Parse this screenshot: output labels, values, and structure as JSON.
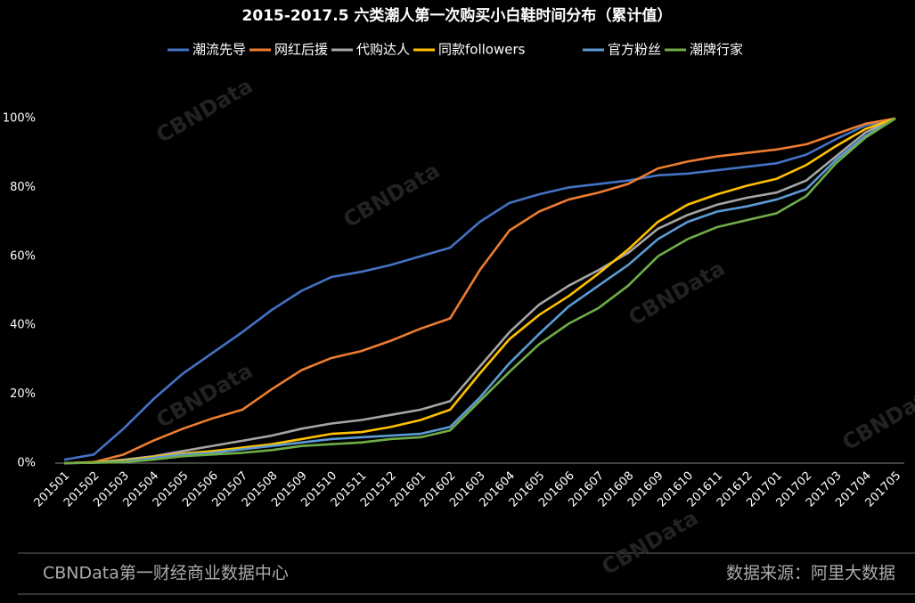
{
  "chart_data": {
    "type": "line",
    "title": "2015-2017.5 六类潮人第一次购买小白鞋时间分布（累计值）",
    "categories": [
      "201501",
      "201502",
      "201503",
      "201504",
      "201505",
      "201506",
      "201507",
      "201508",
      "201509",
      "201510",
      "201511",
      "201512",
      "201601",
      "201602",
      "201603",
      "201604",
      "201605",
      "201606",
      "201607",
      "201608",
      "201609",
      "201610",
      "201611",
      "201612",
      "201701",
      "201702",
      "201703",
      "201704",
      "201705"
    ],
    "series": [
      {
        "name": "潮流先导",
        "color": "#4472c4",
        "values": [
          1,
          2.5,
          10,
          18.5,
          26,
          32,
          38,
          44.5,
          50,
          54,
          55.5,
          57.5,
          60,
          62.5,
          70,
          75.5,
          78,
          80,
          81,
          82,
          83.5,
          84,
          85,
          86,
          87,
          89.5,
          94,
          98,
          100
        ]
      },
      {
        "name": "网红后援",
        "color": "#ed7d31",
        "values": [
          0,
          0.3,
          2.5,
          6.5,
          10,
          13,
          15.5,
          21.5,
          27,
          30.5,
          32.5,
          35.5,
          39,
          42,
          56,
          67.5,
          73,
          76.5,
          78.5,
          81,
          85.5,
          87.5,
          89,
          90,
          91,
          92.5,
          95.5,
          98.5,
          100
        ]
      },
      {
        "name": "代购达人",
        "color": "#a5a5a5",
        "values": [
          0,
          0.2,
          1,
          2,
          3.5,
          5,
          6.5,
          8,
          10,
          11.5,
          12.5,
          14,
          15.5,
          18,
          28,
          38,
          46,
          51.5,
          56,
          61,
          68,
          72,
          75,
          77,
          78.5,
          82,
          89,
          96,
          100
        ]
      },
      {
        "name": "同款followers",
        "color": "#ffc000",
        "values": [
          0,
          0.2,
          0.8,
          1.8,
          2.8,
          3.5,
          4.5,
          5.5,
          7,
          8.5,
          9,
          10.5,
          12.5,
          15.5,
          26,
          36,
          43,
          48.5,
          55,
          62,
          70,
          75,
          78,
          80.5,
          82.5,
          86.5,
          92,
          97,
          100
        ]
      },
      {
        "name": "官方粉丝",
        "color": "#5b9bd5",
        "values": [
          0,
          0.1,
          0.5,
          1.5,
          2.5,
          3,
          4,
          5,
          6,
          7,
          7.5,
          8,
          8.5,
          10.5,
          19,
          29,
          37.5,
          45.5,
          51.5,
          57.5,
          65,
          70,
          73,
          74.5,
          76.5,
          79.5,
          88,
          95,
          100
        ]
      },
      {
        "name": "潮牌行家",
        "color": "#70ad47",
        "values": [
          0,
          0.1,
          0.3,
          1,
          2,
          2.5,
          3,
          3.8,
          5,
          5.5,
          6,
          7,
          7.5,
          9.5,
          18,
          26.5,
          34.5,
          40.5,
          45,
          51.5,
          60,
          65,
          68.5,
          70.5,
          72.5,
          77.5,
          87,
          94.5,
          100
        ]
      }
    ],
    "ylim": [
      0,
      100
    ],
    "yticks": [
      {
        "value": 0,
        "label": "0%"
      },
      {
        "value": 20,
        "label": "20%"
      },
      {
        "value": 40,
        "label": "40%"
      },
      {
        "value": 60,
        "label": "60%"
      },
      {
        "value": 80,
        "label": "80%"
      },
      {
        "value": 100,
        "label": "100%"
      }
    ],
    "grid": false,
    "legend": "top",
    "watermark": "CBNData",
    "footer_left": "CBNData第一财经商业数据中心",
    "footer_right": "数据来源：阿里大数据"
  }
}
